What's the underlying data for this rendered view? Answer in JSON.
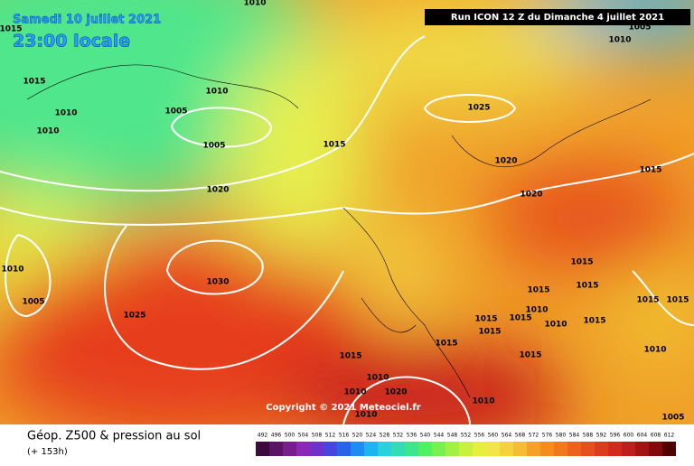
{
  "header": {
    "date": "Samedi 10 juillet 2021",
    "time": "23:00 locale",
    "run": "Run ICON 12 Z du Dimanche 4 juillet 2021",
    "copyright": "Copyright © 2021 Meteociel.fr"
  },
  "footer": {
    "title": "Géop. Z500 & pression au sol",
    "lead": "(+ 153h)"
  },
  "isobar_labels": [
    1010,
    1015,
    1005,
    1010,
    1015,
    1010,
    1005,
    1010,
    1010,
    1025,
    1015,
    1005,
    1020,
    1015,
    1020,
    1020,
    1010,
    1030,
    1015,
    1015,
    1015,
    1010,
    1005,
    1025,
    1015,
    1015,
    1010,
    1015,
    1015,
    1015,
    1015,
    1015,
    1010,
    1010,
    1010,
    1020,
    1010,
    1010,
    1005,
    1015,
    1015
  ],
  "scale": {
    "labels": [
      492,
      496,
      500,
      504,
      508,
      512,
      516,
      520,
      524,
      528,
      532,
      536,
      540,
      544,
      548,
      552,
      556,
      560,
      564,
      568,
      572,
      576,
      580,
      584,
      588,
      592,
      596,
      600,
      604,
      608,
      612
    ],
    "colors": [
      "#3c0a3c",
      "#5a1464",
      "#781e8c",
      "#8c28b4",
      "#6e32c8",
      "#4646dc",
      "#2864e6",
      "#1e8cf0",
      "#1eb4f0",
      "#28d2dc",
      "#32dcb4",
      "#3ce68c",
      "#50f064",
      "#78f050",
      "#a0f046",
      "#c8f03c",
      "#e6f03c",
      "#f0e646",
      "#f5d23c",
      "#f5be32",
      "#f5a028",
      "#f58c1e",
      "#f0781e",
      "#eb641e",
      "#e6501e",
      "#dc3c1e",
      "#d2281e",
      "#be1e1e",
      "#a01414",
      "#820a0a",
      "#500000"
    ]
  }
}
